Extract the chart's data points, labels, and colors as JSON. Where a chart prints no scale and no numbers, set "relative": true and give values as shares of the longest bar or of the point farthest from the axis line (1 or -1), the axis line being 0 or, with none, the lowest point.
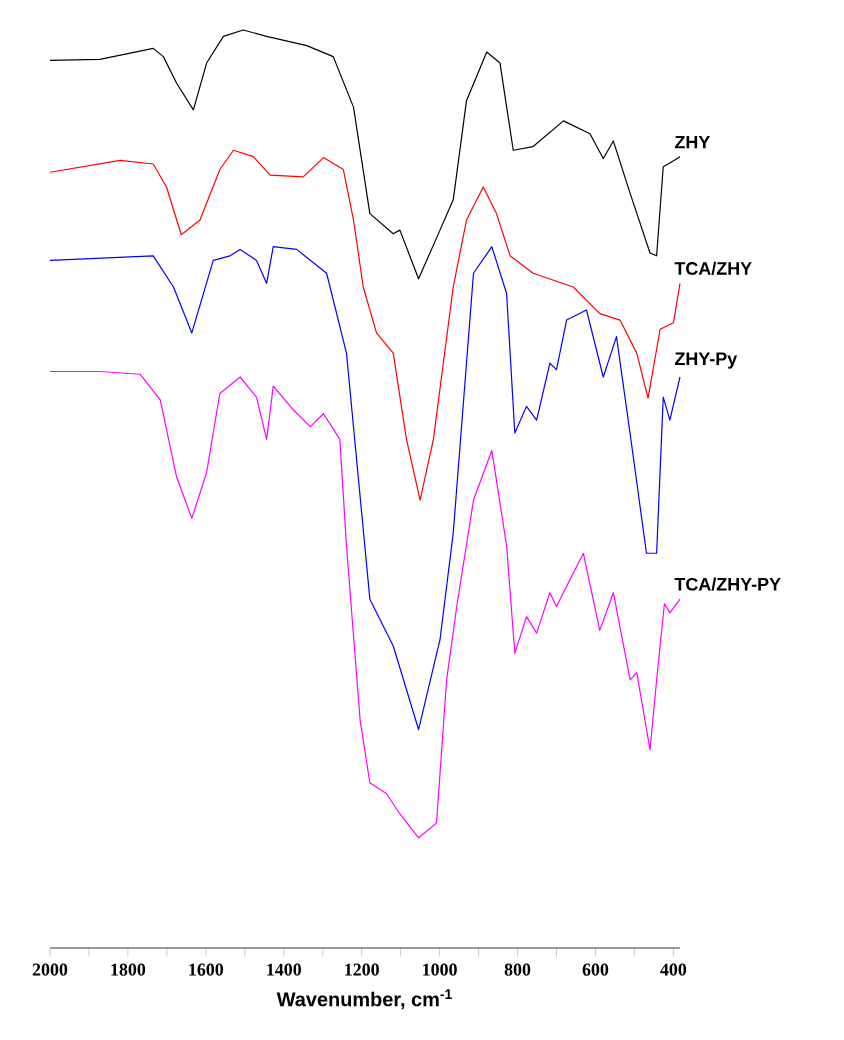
{
  "chart_data": {
    "type": "line",
    "relative": true,
    "xlabel": "Wavenumber, cm$^{-1}$",
    "xlim": [
      2000,
      383
    ],
    "xticks": [
      2000,
      {
        "value": 1900,
        "label": null
      },
      1800,
      {
        "value": 1700,
        "label": null
      },
      1600,
      {
        "value": 1500,
        "label": null
      },
      1400,
      {
        "value": 1300,
        "label": null
      },
      1200,
      {
        "value": 1100,
        "label": null
      },
      1000,
      {
        "value": 900,
        "label": null
      },
      800,
      {
        "value": 700,
        "label": null
      },
      600,
      {
        "value": 500,
        "label": null
      },
      400
    ],
    "series": [
      {
        "name": "ZHY",
        "color": "#000000",
        "x": [
          2000,
          1872,
          1735,
          1709,
          1675,
          1632,
          1598,
          1555,
          1504,
          1444,
          1341,
          1273,
          1221,
          1179,
          1119,
          1102,
          1054,
          999,
          965,
          931,
          879,
          845,
          811,
          760,
          682,
          614,
          580,
          554,
          511,
          460,
          443,
          426,
          409,
          383
        ],
        "values": [
          0.967,
          0.968,
          0.98,
          0.971,
          0.942,
          0.913,
          0.964,
          0.993,
          1.0,
          0.993,
          0.983,
          0.971,
          0.916,
          0.8,
          0.778,
          0.782,
          0.729,
          0.782,
          0.815,
          0.923,
          0.976,
          0.964,
          0.869,
          0.873,
          0.901,
          0.887,
          0.86,
          0.879,
          0.822,
          0.757,
          0.754,
          0.851,
          0.855,
          0.862
        ]
      },
      {
        "name": "TCA/ZHY",
        "color": "#ff0000",
        "x": [
          2000,
          1820,
          1735,
          1701,
          1663,
          1615,
          1564,
          1529,
          1478,
          1435,
          1350,
          1298,
          1247,
          1221,
          1196,
          1162,
          1119,
          1085,
          1050,
          1016,
          965,
          931,
          888,
          854,
          819,
          760,
          657,
          589,
          537,
          494,
          465,
          434,
          400,
          383
        ],
        "values": [
          0.845,
          0.858,
          0.854,
          0.829,
          0.777,
          0.793,
          0.848,
          0.869,
          0.862,
          0.842,
          0.84,
          0.861,
          0.848,
          0.793,
          0.72,
          0.67,
          0.648,
          0.554,
          0.488,
          0.554,
          0.72,
          0.793,
          0.829,
          0.8,
          0.754,
          0.735,
          0.72,
          0.691,
          0.684,
          0.648,
          0.599,
          0.674,
          0.681,
          0.724
        ]
      },
      {
        "name": "ZHY-Py",
        "color": "#0000ff",
        "x": [
          2000,
          1735,
          1683,
          1636,
          1581,
          1538,
          1512,
          1470,
          1444,
          1427,
          1367,
          1290,
          1239,
          1179,
          1119,
          1054,
          999,
          965,
          913,
          866,
          828,
          807,
          777,
          751,
          717,
          700,
          674,
          623,
          580,
          546,
          511,
          469,
          443,
          426,
          409,
          383
        ],
        "values": [
          0.749,
          0.754,
          0.72,
          0.67,
          0.749,
          0.754,
          0.761,
          0.749,
          0.724,
          0.764,
          0.761,
          0.735,
          0.648,
          0.38,
          0.329,
          0.238,
          0.336,
          0.452,
          0.735,
          0.764,
          0.713,
          0.561,
          0.59,
          0.575,
          0.637,
          0.63,
          0.684,
          0.695,
          0.622,
          0.666,
          0.56,
          0.43,
          0.43,
          0.6,
          0.575,
          0.622
        ]
      },
      {
        "name": "TCA/ZHY-PY",
        "color": "#ff00ff",
        "x": [
          2000,
          1872,
          1769,
          1717,
          1675,
          1636,
          1598,
          1564,
          1512,
          1470,
          1444,
          1427,
          1375,
          1332,
          1298,
          1256,
          1239,
          1204,
          1179,
          1136,
          1102,
          1054,
          1008,
          982,
          956,
          913,
          866,
          828,
          807,
          777,
          751,
          717,
          700,
          674,
          631,
          589,
          554,
          511,
          494,
          460,
          443,
          423,
          409,
          383
        ],
        "values": [
          0.628,
          0.628,
          0.625,
          0.597,
          0.513,
          0.468,
          0.518,
          0.604,
          0.622,
          0.6,
          0.554,
          0.612,
          0.586,
          0.568,
          0.582,
          0.554,
          0.438,
          0.248,
          0.18,
          0.168,
          0.146,
          0.12,
          0.136,
          0.292,
          0.372,
          0.488,
          0.542,
          0.438,
          0.321,
          0.361,
          0.343,
          0.387,
          0.372,
          0.394,
          0.43,
          0.346,
          0.387,
          0.292,
          0.3,
          0.216,
          0.292,
          0.375,
          0.365,
          0.38
        ]
      }
    ]
  }
}
